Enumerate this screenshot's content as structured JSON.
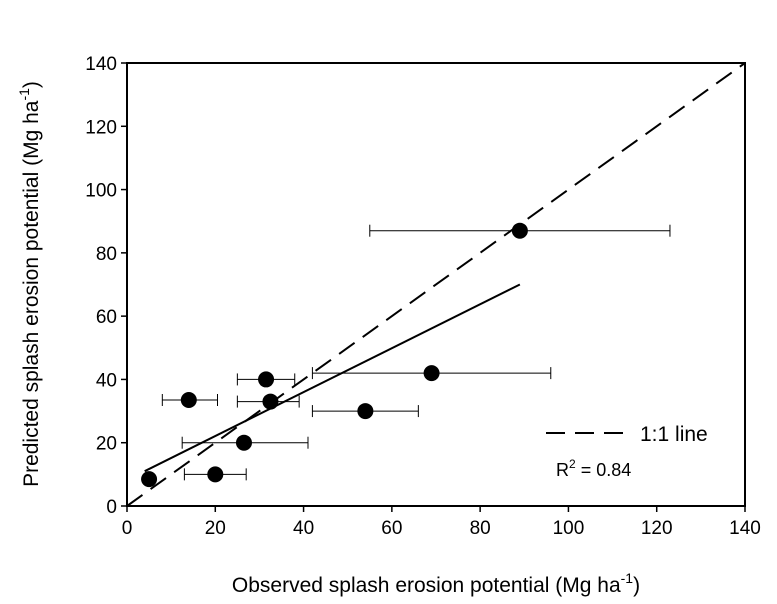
{
  "chart_data": {
    "type": "scatter",
    "title": "",
    "xlabel": {
      "text": "Observed splash erosion potential (Mg ha",
      "sup": "-1",
      "close": ")"
    },
    "ylabel": {
      "text": "Predicted splash erosion potential (Mg ha",
      "sup": "-1",
      "close": ")"
    },
    "xlim": [
      0,
      140
    ],
    "ylim": [
      0,
      140
    ],
    "xticks": [
      0,
      20,
      40,
      60,
      80,
      100,
      120,
      140
    ],
    "yticks": [
      0,
      20,
      40,
      60,
      80,
      100,
      120,
      140
    ],
    "grid": false,
    "points": [
      {
        "x": 5,
        "y": 8.5,
        "xerr": [
          5,
          5
        ]
      },
      {
        "x": 14,
        "y": 33.5,
        "xerr": [
          8,
          20.5
        ]
      },
      {
        "x": 20,
        "y": 10,
        "xerr": [
          13,
          27
        ]
      },
      {
        "x": 26.5,
        "y": 20,
        "xerr": [
          12.5,
          41
        ]
      },
      {
        "x": 31.5,
        "y": 40,
        "xerr": [
          25,
          38
        ]
      },
      {
        "x": 32.5,
        "y": 33,
        "xerr": [
          25,
          39
        ]
      },
      {
        "x": 54,
        "y": 30,
        "xerr": [
          42,
          66
        ]
      },
      {
        "x": 69,
        "y": 42,
        "xerr": [
          42,
          96
        ]
      },
      {
        "x": 89,
        "y": 87,
        "xerr": [
          55,
          123
        ]
      }
    ],
    "regression_line": {
      "x": [
        4,
        89
      ],
      "y": [
        11,
        70
      ]
    },
    "reference_line": {
      "x": [
        0,
        140
      ],
      "y": [
        0,
        140
      ],
      "style": "dashed"
    },
    "legend": {
      "label": "1:1 line",
      "position": "bottom-right"
    },
    "annotation": {
      "prefix": "R",
      "sup": "2",
      "suffix": " = 0.84"
    }
  }
}
